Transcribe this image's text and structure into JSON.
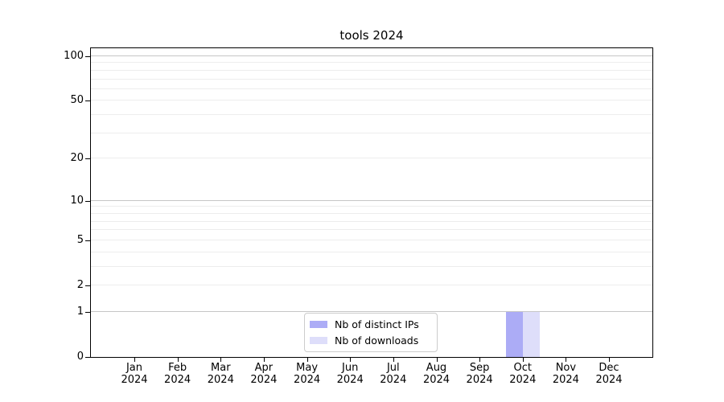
{
  "chart_data": {
    "type": "bar",
    "title": "tools 2024",
    "x_tick_months": [
      "Jan",
      "Feb",
      "Mar",
      "Apr",
      "May",
      "Jun",
      "Jul",
      "Aug",
      "Sep",
      "Oct",
      "Nov",
      "Dec"
    ],
    "x_tick_year": "2024",
    "series": [
      {
        "name": "Nb of distinct IPs",
        "color": "#acacf6",
        "values": [
          0,
          0,
          0,
          0,
          0,
          0,
          0,
          0,
          0,
          1,
          0,
          0
        ]
      },
      {
        "name": "Nb of downloads",
        "color": "#dedefa",
        "values": [
          0,
          0,
          0,
          0,
          0,
          0,
          0,
          0,
          0,
          1,
          0,
          0
        ]
      }
    ],
    "y_scale": "log1p",
    "y_ticks_labeled": [
      0,
      1,
      2,
      5,
      10,
      20,
      50,
      100
    ],
    "y_gridlines_all": [
      1,
      2,
      3,
      4,
      5,
      6,
      7,
      8,
      9,
      10,
      20,
      30,
      40,
      50,
      60,
      70,
      80,
      90,
      100
    ],
    "y_gridlines_dark": [
      1,
      10,
      100
    ],
    "ylim": [
      0,
      113
    ],
    "grid": "horizontal",
    "legend_position": "lower center"
  },
  "colors": {
    "axis": "#000000",
    "text": "#000000",
    "grid_dark": "#c6c6c6",
    "grid_light": "#ededed",
    "legend_border": "#cccccc"
  }
}
